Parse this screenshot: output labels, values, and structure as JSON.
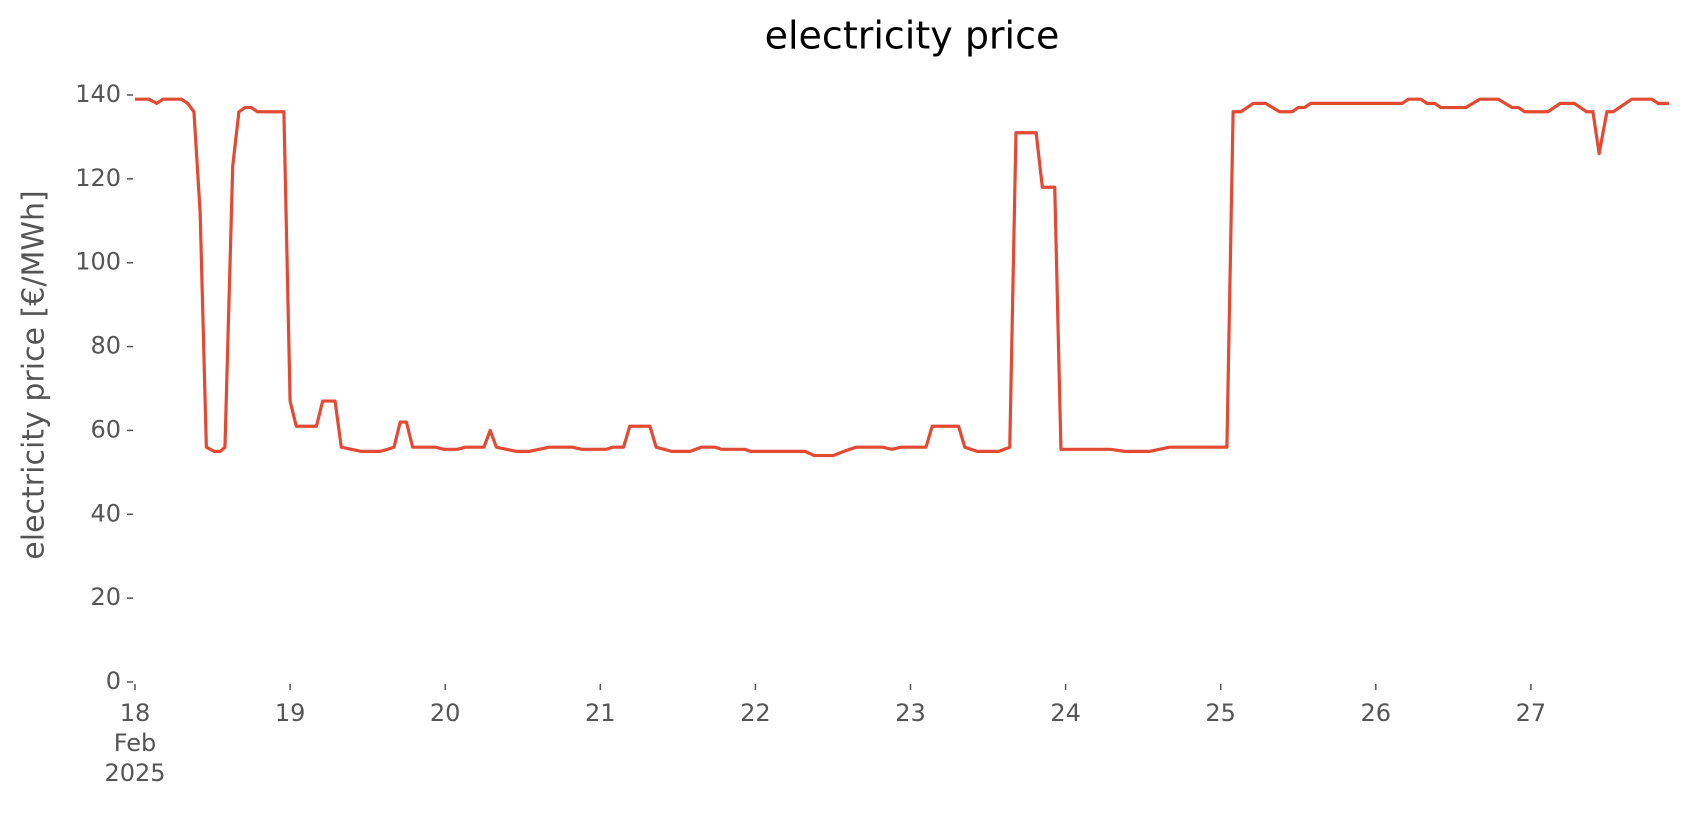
{
  "chart_data": {
    "type": "line",
    "title": "electricity price",
    "ylabel": "electricity price [€/MWh]",
    "x": [
      18.0,
      18.09,
      18.14,
      18.18,
      18.3,
      18.34,
      18.38,
      18.42,
      18.46,
      18.51,
      18.55,
      18.58,
      18.63,
      18.67,
      18.71,
      18.75,
      18.79,
      18.96,
      19.0,
      19.04,
      19.17,
      19.21,
      19.29,
      19.33,
      19.46,
      19.58,
      19.63,
      19.67,
      19.71,
      19.75,
      19.79,
      19.94,
      19.99,
      20.08,
      20.13,
      20.25,
      20.29,
      20.33,
      20.46,
      20.54,
      20.67,
      20.82,
      20.88,
      21.04,
      21.08,
      21.15,
      21.19,
      21.32,
      21.36,
      21.46,
      21.58,
      21.65,
      21.74,
      21.78,
      21.93,
      21.97,
      22.32,
      22.38,
      22.5,
      22.57,
      22.65,
      22.82,
      22.88,
      22.94,
      23.1,
      23.14,
      23.31,
      23.35,
      23.43,
      23.57,
      23.64,
      23.68,
      23.81,
      23.85,
      23.93,
      23.97,
      24.29,
      24.38,
      24.54,
      24.67,
      25.04,
      25.08,
      25.13,
      25.21,
      25.29,
      25.38,
      25.46,
      25.5,
      25.54,
      25.58,
      26.17,
      26.21,
      26.29,
      26.33,
      26.38,
      26.42,
      26.58,
      26.67,
      26.79,
      26.88,
      26.92,
      26.96,
      27.11,
      27.19,
      27.28,
      27.36,
      27.4,
      27.44,
      27.49,
      27.53,
      27.65,
      27.78,
      27.82,
      27.89
    ],
    "series": [
      {
        "name": "electricity price",
        "color": "#e24a33",
        "values": [
          139,
          139,
          138,
          139,
          139,
          138,
          136,
          112,
          56,
          55,
          55,
          56,
          123,
          136,
          137,
          137,
          136,
          136,
          67,
          61,
          61,
          67,
          67,
          56,
          55,
          55,
          55.5,
          56,
          62,
          62,
          56,
          56,
          55.5,
          55.5,
          56,
          56,
          60,
          56,
          55,
          55,
          56,
          56,
          55.5,
          55.5,
          56,
          56,
          61,
          61,
          56,
          55,
          55,
          56,
          56,
          55.5,
          55.5,
          55,
          55,
          54,
          54,
          55,
          56,
          56,
          55.5,
          56,
          56,
          61,
          61,
          56,
          55,
          55,
          56,
          131,
          131,
          118,
          118,
          55.5,
          55.5,
          55,
          55,
          56,
          56,
          136,
          136,
          138,
          138,
          136,
          136,
          137,
          137,
          138,
          138,
          139,
          139,
          138,
          138,
          137,
          137,
          139,
          139,
          137,
          137,
          136,
          136,
          138,
          138,
          136,
          136,
          126,
          136,
          136,
          139,
          139,
          138,
          138
        ]
      }
    ],
    "xlim": [
      18,
      28
    ],
    "xticks": [
      {
        "value": 18,
        "label": "18\nFeb\n2025"
      },
      19,
      20,
      21,
      22,
      23,
      24,
      25,
      26,
      27
    ],
    "ylim": [
      0,
      140
    ],
    "yticks": [
      0,
      20,
      40,
      60,
      80,
      100,
      120,
      140
    ]
  }
}
